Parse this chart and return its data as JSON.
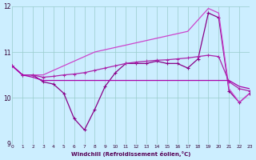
{
  "x": [
    0,
    1,
    2,
    3,
    4,
    5,
    6,
    7,
    8,
    9,
    10,
    11,
    12,
    13,
    14,
    15,
    16,
    17,
    18,
    19,
    20,
    21,
    22,
    23
  ],
  "line_marked": [
    10.7,
    10.5,
    10.5,
    10.35,
    10.3,
    10.1,
    9.55,
    9.3,
    9.75,
    10.25,
    10.55,
    10.75,
    10.75,
    10.75,
    10.8,
    10.75,
    10.75,
    10.65,
    10.85,
    11.85,
    11.75,
    10.15,
    9.9,
    10.1
  ],
  "line_diagonal": [
    10.7,
    10.5,
    10.5,
    10.5,
    10.6,
    10.7,
    10.8,
    10.9,
    11.0,
    11.05,
    11.1,
    11.15,
    11.2,
    11.25,
    11.3,
    11.35,
    11.4,
    11.45,
    11.7,
    11.95,
    11.85,
    10.2,
    9.9,
    10.1
  ],
  "line_flat_upper": [
    10.7,
    10.5,
    10.5,
    10.45,
    10.47,
    10.5,
    10.52,
    10.55,
    10.6,
    10.65,
    10.7,
    10.75,
    10.78,
    10.8,
    10.82,
    10.83,
    10.85,
    10.87,
    10.9,
    10.93,
    10.9,
    10.35,
    10.2,
    10.15
  ],
  "line_flat_low": [
    10.7,
    10.5,
    10.45,
    10.38,
    10.38,
    10.38,
    10.38,
    10.38,
    10.38,
    10.38,
    10.38,
    10.38,
    10.38,
    10.38,
    10.38,
    10.38,
    10.38,
    10.38,
    10.38,
    10.38,
    10.38,
    10.38,
    10.25,
    10.2
  ],
  "color": "#aa00aa",
  "color_marked": "#880088",
  "color_diag": "#cc44cc",
  "color_upper": "#aa22aa",
  "bg_color": "#cceeff",
  "grid_color": "#99cccc",
  "xlabel": "Windchill (Refroidissement éolien,°C)",
  "xlim": [
    0,
    23
  ],
  "ylim": [
    9,
    12
  ],
  "yticks": [
    9,
    10,
    11,
    12
  ],
  "xticks": [
    0,
    1,
    2,
    3,
    4,
    5,
    6,
    7,
    8,
    9,
    10,
    11,
    12,
    13,
    14,
    15,
    16,
    17,
    18,
    19,
    20,
    21,
    22,
    23
  ]
}
